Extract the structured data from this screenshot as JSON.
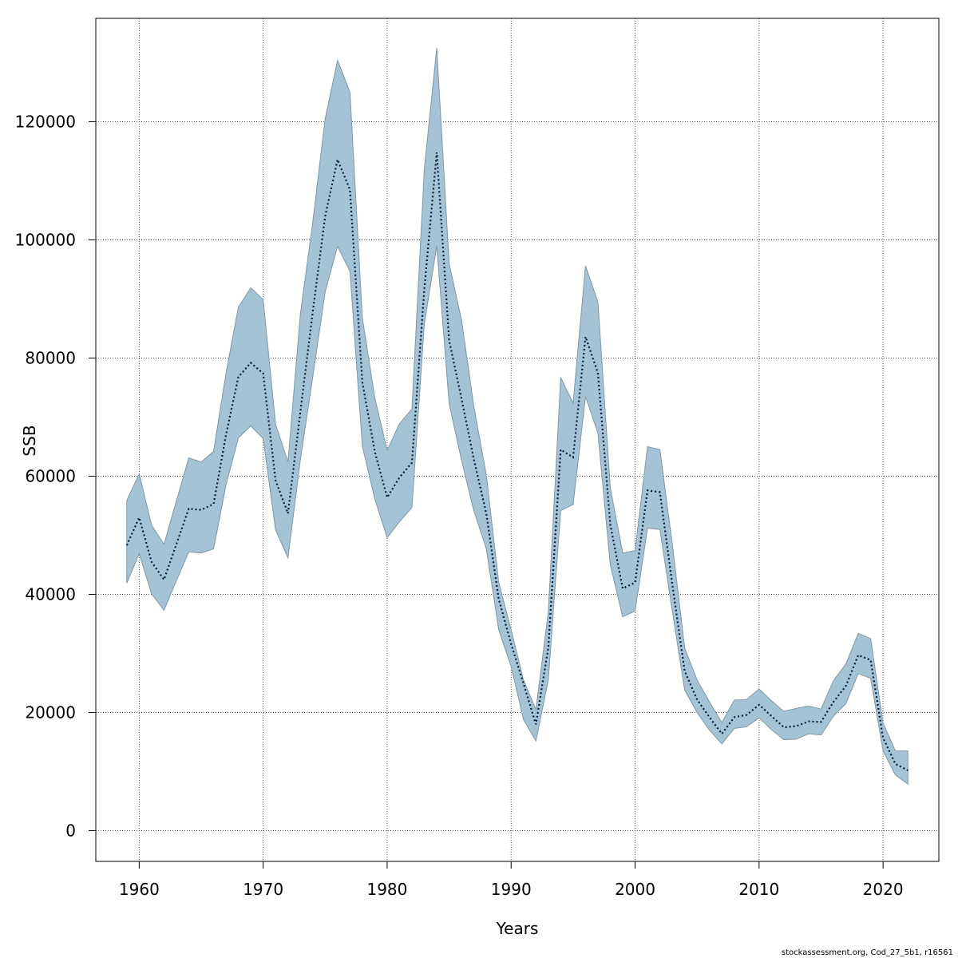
{
  "colors": {
    "band_fill": "#a4c4d6",
    "band_stroke": "#7f97a6",
    "line": "#00183a",
    "grid": "#555555",
    "frame": "#000000"
  },
  "footer": "stockassessment.org, Cod_27_5b1, r16561",
  "chart_data": {
    "type": "area",
    "title": "",
    "xlabel": "Years",
    "ylabel": "SSB",
    "xlim": [
      1956.5,
      2024.5
    ],
    "ylim": [
      -5200,
      137500
    ],
    "xticks": [
      1960,
      1970,
      1980,
      1990,
      2000,
      2010,
      2020
    ],
    "yticks": [
      0,
      20000,
      40000,
      60000,
      80000,
      100000,
      120000
    ],
    "grid": true,
    "x": [
      1959,
      1960,
      1961,
      1962,
      1963,
      1964,
      1965,
      1966,
      1967,
      1968,
      1969,
      1970,
      1971,
      1972,
      1973,
      1974,
      1975,
      1976,
      1977,
      1978,
      1979,
      1980,
      1981,
      1982,
      1983,
      1984,
      1985,
      1986,
      1987,
      1988,
      1989,
      1990,
      1991,
      1992,
      1993,
      1994,
      1995,
      1996,
      1997,
      1998,
      1999,
      2000,
      2001,
      2002,
      2003,
      2004,
      2005,
      2006,
      2007,
      2008,
      2009,
      2010,
      2011,
      2012,
      2013,
      2014,
      2015,
      2016,
      2017,
      2018,
      2019,
      2020,
      2021,
      2022
    ],
    "series": [
      {
        "name": "SSB estimate",
        "style": "dotted",
        "values": [
          48300,
          53000,
          45500,
          42500,
          48500,
          54500,
          54300,
          55300,
          67000,
          76800,
          79200,
          77400,
          59300,
          53700,
          70900,
          87800,
          104000,
          113600,
          108500,
          75900,
          64200,
          56400,
          59800,
          62300,
          91700,
          114800,
          83000,
          73100,
          62800,
          53700,
          39200,
          31600,
          24900,
          18000,
          31000,
          64500,
          63200,
          83600,
          77500,
          51800,
          41000,
          42000,
          57600,
          57300,
          41700,
          27000,
          22200,
          19200,
          16400,
          19200,
          19600,
          21300,
          19400,
          17500,
          17700,
          18500,
          18400,
          21800,
          24500,
          29700,
          28900,
          15700,
          11300,
          10200
        ]
      },
      {
        "name": "upper 95% CI",
        "values": [
          55900,
          60400,
          51700,
          48500,
          55800,
          63100,
          62400,
          64200,
          77400,
          88600,
          91900,
          89900,
          68800,
          62400,
          87400,
          103000,
          120500,
          130400,
          125000,
          86800,
          73300,
          64400,
          68900,
          71400,
          112000,
          132500,
          96000,
          86400,
          71700,
          60200,
          42000,
          34000,
          25500,
          20500,
          37000,
          76700,
          72400,
          95600,
          89500,
          58000,
          47000,
          47400,
          65000,
          64500,
          48500,
          30900,
          25500,
          21800,
          18300,
          22100,
          22200,
          24000,
          22000,
          20200,
          20700,
          21100,
          20600,
          25400,
          28200,
          33400,
          32500,
          18200,
          13500,
          13500
        ]
      },
      {
        "name": "lower 95% CI",
        "values": [
          41900,
          46900,
          40100,
          37300,
          42300,
          47200,
          47000,
          47700,
          58500,
          66500,
          68500,
          66400,
          50900,
          46200,
          62800,
          76800,
          91200,
          98900,
          94700,
          65100,
          56200,
          49600,
          52300,
          54700,
          85800,
          99000,
          72300,
          62700,
          54100,
          47700,
          34000,
          27800,
          18800,
          15200,
          25500,
          54200,
          55200,
          73500,
          67300,
          45000,
          36200,
          37200,
          51200,
          51000,
          37200,
          23800,
          20000,
          17000,
          14700,
          17300,
          17600,
          19100,
          17100,
          15400,
          15500,
          16400,
          16200,
          19400,
          21500,
          26600,
          25800,
          13500,
          9400,
          7900
        ]
      }
    ]
  }
}
